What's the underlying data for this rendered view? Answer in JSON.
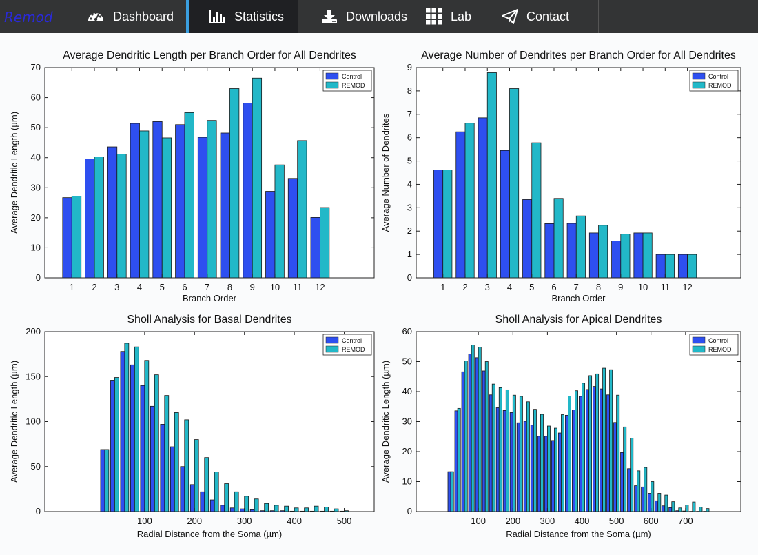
{
  "nav": {
    "brand": "Remod",
    "items": [
      {
        "label": "Dashboard",
        "icon": "dashboard-icon",
        "active": false
      },
      {
        "label": "Statistics",
        "icon": "bar-chart-icon",
        "active": true
      },
      {
        "label": "Downloads",
        "icon": "download-icon",
        "active": false
      },
      {
        "label": "Lab",
        "icon": "grid-icon",
        "active": false
      },
      {
        "label": "Contact",
        "icon": "send-icon",
        "active": false
      }
    ]
  },
  "colors": {
    "control": "#2e4ff0",
    "remod": "#22b8c8"
  },
  "chart_data": [
    {
      "type": "bar",
      "title": "Average Dendritic Length per Branch Order for All Dendrites",
      "xlabel": "Branch Order",
      "ylabel": "Average Dendritic Length (µm)",
      "x": [
        1,
        2,
        3,
        4,
        5,
        6,
        7,
        8,
        9,
        10,
        11,
        12
      ],
      "xlim": [
        -0.2,
        14.4
      ],
      "ylim": [
        0,
        70
      ],
      "yticks": [
        0,
        10,
        20,
        30,
        40,
        50,
        60,
        70
      ],
      "xticks": [
        1,
        2,
        3,
        4,
        5,
        6,
        7,
        8,
        9,
        10,
        11,
        12
      ],
      "legend": "top-right",
      "series": [
        {
          "name": "Control",
          "values": [
            26.7,
            39.6,
            43.6,
            51.4,
            52.0,
            51.0,
            46.8,
            48.2,
            58.2,
            28.8,
            33.1,
            20.1
          ]
        },
        {
          "name": "REMOD",
          "values": [
            27.2,
            40.3,
            41.2,
            48.9,
            46.6,
            55.0,
            52.4,
            63.0,
            66.5,
            37.6,
            45.7,
            23.4
          ]
        }
      ]
    },
    {
      "type": "bar",
      "title": "Average Number of Dendrites per Branch Order for All Dendrites",
      "xlabel": "Branch Order",
      "ylabel": "Average Number of Dendrites",
      "x": [
        1,
        2,
        3,
        4,
        5,
        6,
        7,
        8,
        9,
        10,
        11,
        12
      ],
      "xlim": [
        -0.2,
        14.4
      ],
      "ylim": [
        0,
        9
      ],
      "yticks": [
        0,
        1,
        2,
        3,
        4,
        5,
        6,
        7,
        8,
        9
      ],
      "xticks": [
        1,
        2,
        3,
        4,
        5,
        6,
        7,
        8,
        9,
        10,
        11,
        12
      ],
      "legend": "top-right",
      "series": [
        {
          "name": "Control",
          "values": [
            4.62,
            6.25,
            6.85,
            5.45,
            3.35,
            2.32,
            2.33,
            1.92,
            1.58,
            1.92,
            1.0,
            1.0
          ]
        },
        {
          "name": "REMOD",
          "values": [
            4.62,
            6.62,
            8.78,
            8.1,
            5.78,
            3.4,
            2.65,
            2.25,
            1.87,
            1.92,
            1.0,
            1.0
          ]
        }
      ]
    },
    {
      "type": "bar",
      "title": "Sholl Analysis for Basal Dendrites",
      "xlabel": "Radial Distance from the Soma (µm)",
      "ylabel": "Average Dendritic Length (µm)",
      "x": [
        20,
        40,
        60,
        80,
        100,
        120,
        140,
        160,
        180,
        200,
        220,
        240,
        260,
        280,
        300,
        320,
        340,
        360,
        380,
        400,
        420,
        440,
        460,
        480,
        500
      ],
      "xlim": [
        -100,
        560
      ],
      "ylim": [
        0,
        200
      ],
      "yticks": [
        0,
        50,
        100,
        150,
        200
      ],
      "xticks": [
        100,
        200,
        300,
        400,
        500
      ],
      "legend": "top-right",
      "series": [
        {
          "name": "Control",
          "values": [
            69,
            146,
            178,
            163,
            140,
            117,
            97,
            72,
            50,
            30,
            22,
            13,
            7,
            4,
            3,
            2,
            1,
            1,
            1,
            0.5,
            0.5,
            0.5,
            0.5,
            0.5,
            0.5
          ]
        },
        {
          "name": "REMOD",
          "values": [
            69,
            149,
            187,
            183,
            168,
            152,
            129,
            110,
            102,
            80,
            60,
            44,
            31,
            22,
            17,
            14,
            9,
            7,
            6,
            4,
            4,
            6,
            5,
            3,
            1
          ]
        }
      ]
    },
    {
      "type": "bar",
      "title": "Sholl Analysis for Apical Dendrites",
      "xlabel": "Radial Distance from the Soma (µm)",
      "ylabel": "Average Dendritic Length (µm)",
      "x": [
        20,
        40,
        60,
        80,
        100,
        120,
        140,
        160,
        180,
        200,
        220,
        240,
        260,
        280,
        300,
        320,
        340,
        360,
        380,
        400,
        420,
        440,
        460,
        480,
        500,
        520,
        540,
        560,
        580,
        600,
        620,
        640,
        660,
        680,
        700,
        720,
        740,
        760
      ],
      "xlim": [
        -80,
        860
      ],
      "ylim": [
        0,
        60
      ],
      "yticks": [
        0,
        10,
        20,
        30,
        40,
        50,
        60
      ],
      "xticks": [
        100,
        200,
        300,
        400,
        500,
        600,
        700
      ],
      "legend": "top-right",
      "series": [
        {
          "name": "Control",
          "values": [
            13.3,
            33.6,
            46.6,
            52.5,
            51.3,
            46.9,
            38.9,
            34.6,
            33.7,
            33.0,
            29.6,
            30.1,
            28.8,
            25.1,
            25.1,
            23.7,
            26.2,
            32.1,
            33.9,
            38.4,
            40.7,
            41.7,
            40.9,
            38.9,
            29.7,
            19.7,
            14.3,
            8.6,
            8.2,
            6.1,
            3.6,
            1.9,
            1.3,
            0.3,
            0.2,
            0.1,
            0.1,
            0.1
          ]
        },
        {
          "name": "REMOD",
          "values": [
            13.3,
            34.4,
            50.2,
            55.5,
            54.8,
            50.0,
            42.5,
            41.3,
            40.6,
            38.8,
            38.4,
            36.6,
            34.1,
            32.4,
            28.5,
            27.8,
            32.3,
            38.5,
            40.3,
            42.8,
            45.3,
            45.9,
            47.8,
            47.3,
            38.8,
            28.2,
            24.5,
            13.6,
            14.7,
            10.0,
            6.1,
            5.5,
            3.3,
            1.2,
            2.2,
            3.2,
            1.5,
            1.0
          ]
        }
      ]
    }
  ]
}
